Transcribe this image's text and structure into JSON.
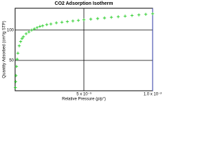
{
  "chart_data": {
    "type": "scatter",
    "title": "CO2 Adsorption Isotherm",
    "x_label": "Relative Pressure (p/p°)",
    "y_label": "Quantity Adsorbed (cm³/g STP)",
    "x": [
      2e-05,
      4e-05,
      6e-05,
      0.0001,
      0.00015,
      0.0002,
      0.0003,
      0.0004,
      0.0005,
      0.0006,
      0.0008,
      0.001,
      0.0012,
      0.0014,
      0.0016,
      0.0018,
      0.002,
      0.0023,
      0.0026,
      0.003,
      0.0034,
      0.0038,
      0.0042,
      0.0046,
      0.005,
      0.0055,
      0.006,
      0.0065,
      0.007,
      0.0075,
      0.008,
      0.0085,
      0.009,
      0.0095,
      0.01
    ],
    "series": [
      {
        "color": "#22cc22",
        "values": [
          5,
          15,
          25,
          40,
          52,
          62,
          74,
          81,
          86,
          89,
          94,
          97,
          100,
          102,
          104,
          106,
          107,
          109,
          110,
          112,
          113,
          114,
          115,
          116,
          117,
          118,
          119,
          120,
          121,
          122,
          123,
          124,
          125,
          126,
          127
        ]
      }
    ],
    "xlim": [
      0,
      0.01
    ],
    "ylim": [
      0,
      136
    ],
    "xticks": [
      {
        "value": 0.005,
        "label": "5 x 10⁻³"
      },
      {
        "value": 0.01,
        "label": "1.0 x 10⁻²"
      }
    ],
    "yticks": [
      50,
      100
    ],
    "grid": true
  }
}
